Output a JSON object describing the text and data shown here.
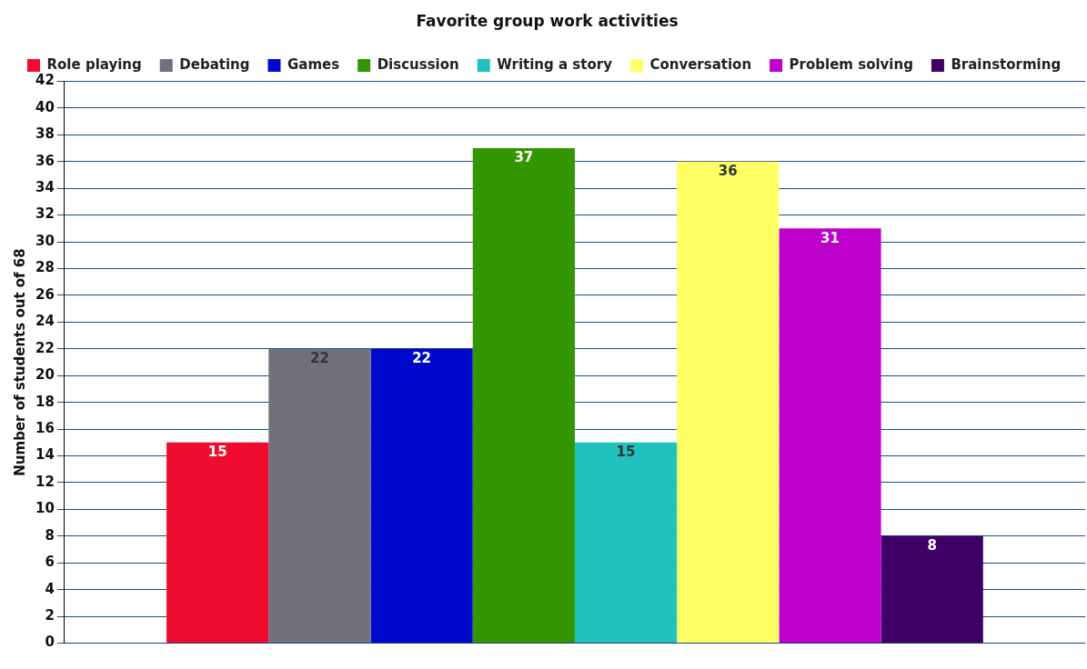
{
  "chart_data": {
    "type": "bar",
    "title": "Favorite group work activities",
    "ylabel": "Number of students out of 68",
    "categories": [
      null
    ],
    "series": [
      {
        "name": "Role playing",
        "color": "#ef0c2e",
        "values": [
          15
        ]
      },
      {
        "name": "Debating",
        "color": "#71717d",
        "values": [
          22
        ]
      },
      {
        "name": "Games",
        "color": "#0008cb",
        "values": [
          22
        ]
      },
      {
        "name": "Discussion",
        "color": "#329600",
        "values": [
          37
        ]
      },
      {
        "name": "Writing a story",
        "color": "#1fc2bd",
        "values": [
          15
        ]
      },
      {
        "name": "Conversation",
        "color": "#ffff66",
        "values": [
          36
        ]
      },
      {
        "name": "Problem solving",
        "color": "#bd00cc",
        "values": [
          31
        ]
      },
      {
        "name": "Brainstorming",
        "color": "#3f0066",
        "values": [
          8
        ]
      }
    ],
    "ylim": [
      0,
      42
    ],
    "yticks": [
      0,
      2,
      4,
      6,
      8,
      10,
      12,
      14,
      16,
      18,
      20,
      22,
      24,
      26,
      28,
      30,
      32,
      34,
      36,
      38,
      40,
      42
    ],
    "grid": "y",
    "legend": "top",
    "data_labels": true
  }
}
